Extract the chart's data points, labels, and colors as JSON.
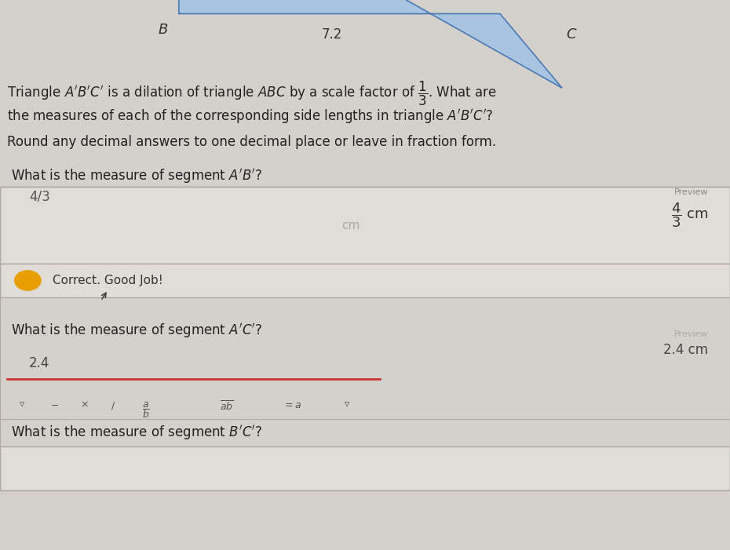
{
  "bg_color": "#d4d0cb",
  "triangle_fill": "#a8c4e0",
  "triangle_stroke": "#4a7ab5",
  "label_B": "B",
  "label_C": "C",
  "label_72": "7.2",
  "main_text_lines": [
    "Triangle $A'B'C'$ is a dilation of triangle $ABC$ by a scale factor of $\\dfrac{1}{3}$. What are",
    "the measures of each of the corresponding side lengths in triangle $A'B'C'$?",
    "Round any decimal answers to one decimal place or leave in fraction form."
  ],
  "q1_label": "What is the measure of segment $A'B'$?",
  "q1_box_answer": "4/3",
  "q1_box_placeholder": "cm",
  "q1_preview_label": "Preview",
  "q1_preview_value": "$\\dfrac{4}{3}$ cm",
  "q1_correct_text": "Correct. Good Job!",
  "q2_label": "What is the measure of segment $A'C'$?",
  "q2_box_answer": "2.4",
  "q2_preview_label": "Preview",
  "q2_preview_value": "2.4 cm",
  "q3_label": "What is the measure of segment $B'C'$?",
  "correct_icon_color": "#e8a000",
  "box_bg": "#e0ddd8",
  "box_border": "#b0aba3",
  "input_underline": "#cc3333",
  "toolbar_items": [
    "$\\triangledown$",
    "$-$",
    "$\\times$",
    "$/$",
    "$\\dfrac{a}{b}$",
    "$\\overline{ab}$",
    "$= a$",
    "$\\triangledown$"
  ]
}
